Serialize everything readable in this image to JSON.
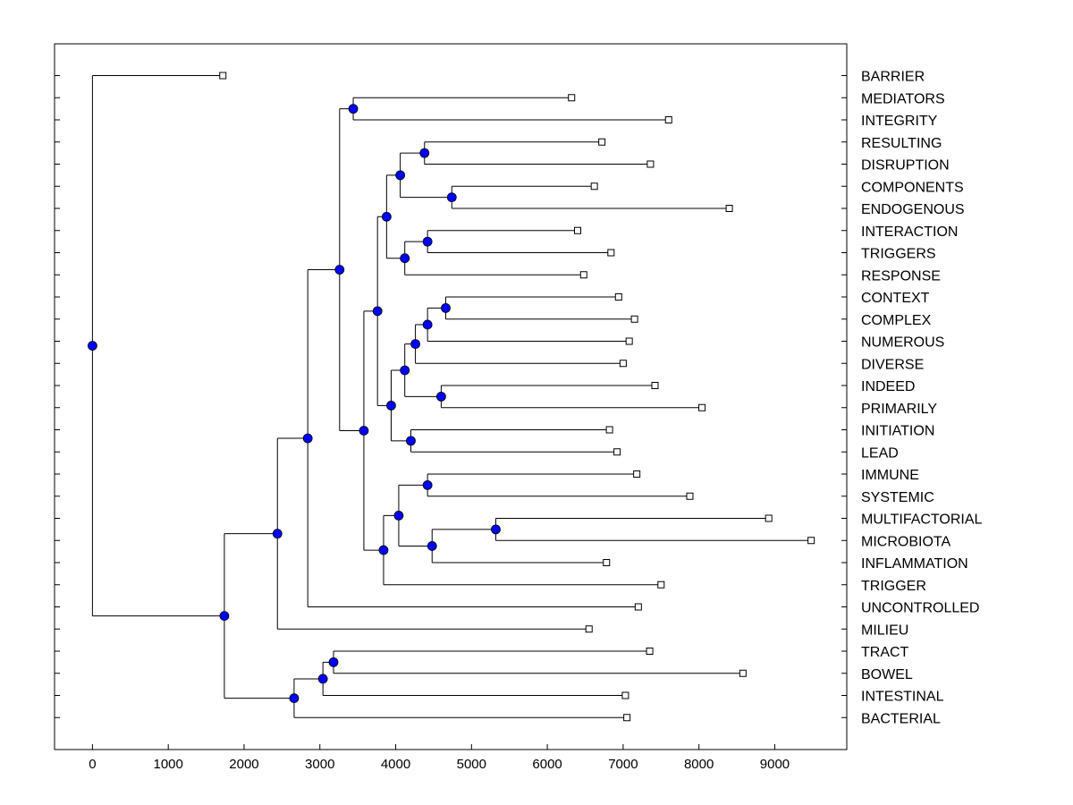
{
  "chart_data": {
    "type": "dendrogram",
    "orientation": "horizontal",
    "title": "",
    "xlabel": "",
    "ylabel": "",
    "xlim": [
      -500,
      9950
    ],
    "xticks": [
      0,
      1000,
      2000,
      3000,
      4000,
      5000,
      6000,
      7000,
      8000,
      9000
    ],
    "xtick_labels": [
      "0",
      "1000",
      "2000",
      "3000",
      "4000",
      "5000",
      "6000",
      "7000",
      "8000",
      "9000"
    ],
    "grid": false,
    "leaves": [
      {
        "id": "BARRIER",
        "label": "BARRIER",
        "x": 1720
      },
      {
        "id": "MEDIATORS",
        "label": "MEDIATORS",
        "x": 6320
      },
      {
        "id": "INTEGRITY",
        "label": "INTEGRITY",
        "x": 7600
      },
      {
        "id": "RESULTING",
        "label": "RESULTING",
        "x": 6720
      },
      {
        "id": "DISRUPTION",
        "label": "DISRUPTION",
        "x": 7360
      },
      {
        "id": "COMPONENTS",
        "label": "COMPONENTS",
        "x": 6620
      },
      {
        "id": "ENDOGENOUS",
        "label": "ENDOGENOUS",
        "x": 8400
      },
      {
        "id": "INTERACTION",
        "label": "INTERACTION",
        "x": 6400
      },
      {
        "id": "TRIGGERS",
        "label": "TRIGGERS",
        "x": 6840
      },
      {
        "id": "RESPONSE",
        "label": "RESPONSE",
        "x": 6480
      },
      {
        "id": "CONTEXT",
        "label": "CONTEXT",
        "x": 6940
      },
      {
        "id": "COMPLEX",
        "label": "COMPLEX",
        "x": 7150
      },
      {
        "id": "NUMEROUS",
        "label": "NUMEROUS",
        "x": 7080
      },
      {
        "id": "DIVERSE",
        "label": "DIVERSE",
        "x": 7000
      },
      {
        "id": "INDEED",
        "label": "INDEED",
        "x": 7420
      },
      {
        "id": "PRIMARILY",
        "label": "PRIMARILY",
        "x": 8040
      },
      {
        "id": "INITIATION",
        "label": "INITIATION",
        "x": 6820
      },
      {
        "id": "LEAD",
        "label": "LEAD",
        "x": 6920
      },
      {
        "id": "IMMUNE",
        "label": "IMMUNE",
        "x": 7180
      },
      {
        "id": "SYSTEMIC",
        "label": "SYSTEMIC",
        "x": 7880
      },
      {
        "id": "MULTIFACTORIAL",
        "label": "MULTIFACTORIAL",
        "x": 8920
      },
      {
        "id": "MICROBIOTA",
        "label": "MICROBIOTA",
        "x": 9480
      },
      {
        "id": "INFLAMMATION",
        "label": "INFLAMMATION",
        "x": 6780
      },
      {
        "id": "TRIGGER",
        "label": "TRIGGER",
        "x": 7500
      },
      {
        "id": "UNCONTROLLED",
        "label": "UNCONTROLLED",
        "x": 7200
      },
      {
        "id": "MILIEU",
        "label": "MILIEU",
        "x": 6550
      },
      {
        "id": "TRACT",
        "label": "TRACT",
        "x": 7350
      },
      {
        "id": "BOWEL",
        "label": "BOWEL",
        "x": 8580
      },
      {
        "id": "INTESTINAL",
        "label": "INTESTINAL",
        "x": 7030
      },
      {
        "id": "BACTERIAL",
        "label": "BACTERIAL",
        "x": 7050
      }
    ],
    "nodes": [
      {
        "id": "n_med_int",
        "x": 3440,
        "children": [
          "MEDIATORS",
          "INTEGRITY"
        ]
      },
      {
        "id": "n_res_dis",
        "x": 4380,
        "children": [
          "RESULTING",
          "DISRUPTION"
        ]
      },
      {
        "id": "n_com_end",
        "x": 4740,
        "children": [
          "COMPONENTS",
          "ENDOGENOUS"
        ]
      },
      {
        "id": "n_rd_ce",
        "x": 4060,
        "children": [
          "n_res_dis",
          "n_com_end"
        ]
      },
      {
        "id": "n_int_tri",
        "x": 4420,
        "children": [
          "INTERACTION",
          "TRIGGERS"
        ]
      },
      {
        "id": "n_it_resp",
        "x": 4120,
        "children": [
          "n_int_tri",
          "RESPONSE"
        ]
      },
      {
        "id": "n_grp_a",
        "x": 3880,
        "children": [
          "n_rd_ce",
          "n_it_resp"
        ]
      },
      {
        "id": "n_con_cpx",
        "x": 4660,
        "children": [
          "CONTEXT",
          "COMPLEX"
        ]
      },
      {
        "id": "n_cc_num",
        "x": 4420,
        "children": [
          "n_con_cpx",
          "NUMEROUS"
        ]
      },
      {
        "id": "n_ccn_div",
        "x": 4260,
        "children": [
          "n_cc_num",
          "DIVERSE"
        ]
      },
      {
        "id": "n_ind_pri",
        "x": 4600,
        "children": [
          "INDEED",
          "PRIMARILY"
        ]
      },
      {
        "id": "n_div_ip",
        "x": 4120,
        "children": [
          "n_ccn_div",
          "n_ind_pri"
        ]
      },
      {
        "id": "n_ini_lea",
        "x": 4200,
        "children": [
          "INITIATION",
          "LEAD"
        ]
      },
      {
        "id": "n_grp_b",
        "x": 3940,
        "children": [
          "n_div_ip",
          "n_ini_lea"
        ]
      },
      {
        "id": "n_ab",
        "x": 3760,
        "children": [
          "n_grp_a",
          "n_grp_b"
        ]
      },
      {
        "id": "n_imm_sys",
        "x": 4420,
        "children": [
          "IMMUNE",
          "SYSTEMIC"
        ]
      },
      {
        "id": "n_mul_mic",
        "x": 5320,
        "children": [
          "MULTIFACTORIAL",
          "MICROBIOTA"
        ]
      },
      {
        "id": "n_mm_inf",
        "x": 4480,
        "children": [
          "n_mul_mic",
          "INFLAMMATION"
        ]
      },
      {
        "id": "n_is_mmi",
        "x": 4040,
        "children": [
          "n_imm_sys",
          "n_mm_inf"
        ]
      },
      {
        "id": "n_c_trig",
        "x": 3840,
        "children": [
          "n_is_mmi",
          "TRIGGER"
        ]
      },
      {
        "id": "n_ab_c",
        "x": 3580,
        "children": [
          "n_ab",
          "n_c_trig"
        ]
      },
      {
        "id": "n_top",
        "x": 3260,
        "children": [
          "n_med_int",
          "n_ab_c"
        ]
      },
      {
        "id": "n_top_unc",
        "x": 2840,
        "children": [
          "n_top",
          "UNCONTROLLED"
        ]
      },
      {
        "id": "n_mil",
        "x": 2440,
        "children": [
          "n_top_unc",
          "MILIEU"
        ]
      },
      {
        "id": "n_tra_bow",
        "x": 3180,
        "children": [
          "TRACT",
          "BOWEL"
        ]
      },
      {
        "id": "n_tb_int",
        "x": 3040,
        "children": [
          "n_tra_bow",
          "INTESTINAL"
        ]
      },
      {
        "id": "n_bac",
        "x": 2660,
        "children": [
          "n_tb_int",
          "BACTERIAL"
        ]
      },
      {
        "id": "n_main",
        "x": 1740,
        "children": [
          "n_mil",
          "n_bac"
        ]
      },
      {
        "id": "n_root",
        "x": 0,
        "children": [
          "BARRIER",
          "n_main"
        ]
      }
    ],
    "colors": {
      "node_fill": "#0000ff",
      "leaf_fill": "#ffffff",
      "line": "#000000"
    }
  }
}
